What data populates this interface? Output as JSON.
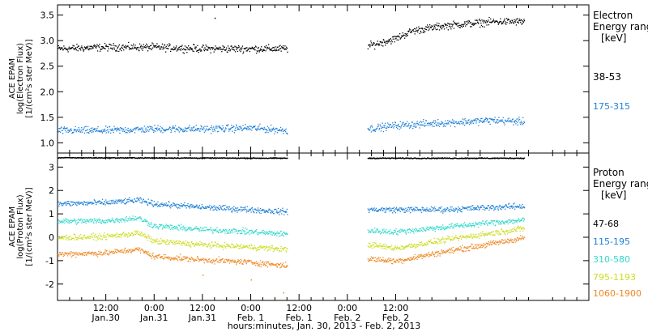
{
  "chart_data": [
    {
      "type": "scatter",
      "panel": "electron",
      "ylabel": [
        "ACE EPAM",
        "log(Electron Flux)",
        "[1/(cm²s ster MeV)]"
      ],
      "ylim": [
        0.8,
        3.7
      ],
      "yticks": [
        "1.0",
        "1.5",
        "2.0",
        "2.5",
        "3.0",
        "3.5"
      ],
      "legend_title": [
        "Electron",
        "Energy range",
        "[keV]"
      ],
      "series": [
        {
          "name": "38-53",
          "color": "#000000",
          "points": [
            [
              0,
              2.85
            ],
            [
              12,
              2.88
            ],
            [
              24,
              2.88
            ],
            [
              36,
              2.85
            ],
            [
              48,
              2.85
            ],
            [
              57,
              2.85
            ],
            [
              77,
              2.9
            ],
            [
              84,
              3.05
            ],
            [
              88,
              3.2
            ],
            [
              96,
              3.3
            ],
            [
              108,
              3.38
            ],
            [
              116,
              3.38
            ]
          ],
          "outliers": [
            [
              39,
              3.45
            ]
          ]
        },
        {
          "name": "175-315",
          "color": "#1e7fd6",
          "points": [
            [
              0,
              1.25
            ],
            [
              12,
              1.25
            ],
            [
              24,
              1.28
            ],
            [
              36,
              1.28
            ],
            [
              48,
              1.3
            ],
            [
              57,
              1.25
            ],
            [
              77,
              1.28
            ],
            [
              84,
              1.35
            ],
            [
              96,
              1.4
            ],
            [
              108,
              1.45
            ],
            [
              116,
              1.42
            ]
          ],
          "outliers": []
        }
      ]
    },
    {
      "type": "scatter",
      "panel": "proton",
      "ylabel": [
        "ACE EPAM",
        "log(Proton Flux)",
        "[1/(cm²s ster MeV)]"
      ],
      "ylim": [
        -2.7,
        3.6
      ],
      "yticks": [
        "-2",
        "-1",
        "0",
        "1",
        "2",
        "3"
      ],
      "legend_title": [
        "Proton",
        "Energy range",
        "[keV]"
      ],
      "series": [
        {
          "name": "47-68",
          "color": "#000000",
          "points": [
            [
              0,
              3.42
            ],
            [
              57,
              3.4
            ],
            [
              77,
              3.4
            ],
            [
              116,
              3.4
            ]
          ],
          "outliers": []
        },
        {
          "name": "115-195",
          "color": "#1e7fd6",
          "points": [
            [
              0,
              1.45
            ],
            [
              12,
              1.5
            ],
            [
              20,
              1.6
            ],
            [
              24,
              1.45
            ],
            [
              36,
              1.3
            ],
            [
              48,
              1.2
            ],
            [
              57,
              1.1
            ],
            [
              77,
              1.2
            ],
            [
              96,
              1.2
            ],
            [
              108,
              1.3
            ],
            [
              116,
              1.35
            ]
          ],
          "outliers": []
        },
        {
          "name": "310-580",
          "color": "#33d9cc",
          "points": [
            [
              0,
              0.7
            ],
            [
              12,
              0.72
            ],
            [
              20,
              0.85
            ],
            [
              24,
              0.5
            ],
            [
              36,
              0.35
            ],
            [
              48,
              0.25
            ],
            [
              57,
              0.15
            ],
            [
              77,
              0.3
            ],
            [
              84,
              0.25
            ],
            [
              96,
              0.45
            ],
            [
              108,
              0.65
            ],
            [
              116,
              0.75
            ]
          ],
          "outliers": []
        },
        {
          "name": "795-1193",
          "color": "#ccdd22",
          "points": [
            [
              0,
              0.0
            ],
            [
              12,
              0.05
            ],
            [
              20,
              0.2
            ],
            [
              24,
              -0.15
            ],
            [
              36,
              -0.3
            ],
            [
              48,
              -0.4
            ],
            [
              57,
              -0.5
            ],
            [
              77,
              -0.3
            ],
            [
              84,
              -0.45
            ],
            [
              96,
              -0.1
            ],
            [
              108,
              0.2
            ],
            [
              116,
              0.4
            ]
          ],
          "outliers": []
        },
        {
          "name": "1060-1900",
          "color": "#ee8822",
          "points": [
            [
              0,
              -0.7
            ],
            [
              12,
              -0.65
            ],
            [
              20,
              -0.5
            ],
            [
              24,
              -0.8
            ],
            [
              36,
              -0.95
            ],
            [
              48,
              -1.05
            ],
            [
              57,
              -1.2
            ],
            [
              77,
              -0.9
            ],
            [
              84,
              -1.0
            ],
            [
              96,
              -0.6
            ],
            [
              108,
              -0.25
            ],
            [
              116,
              0.0
            ]
          ],
          "outliers": [
            [
              36,
              -1.6
            ],
            [
              48,
              -1.8
            ],
            [
              56,
              -2.35
            ]
          ]
        }
      ]
    }
  ],
  "x_axis": {
    "range_hours": [
      0,
      132
    ],
    "ticks": [
      {
        "h": 6,
        "time": "12:00",
        "date": "Jan.30"
      },
      {
        "h": 18,
        "time": "0:00",
        "date": "Jan.31"
      },
      {
        "h": 30,
        "time": "12:00",
        "date": "Jan.31"
      },
      {
        "h": 42,
        "time": "0:00",
        "date": "Feb. 1"
      },
      {
        "h": 54,
        "time": "12:00",
        "date": "Feb. 1"
      },
      {
        "h": 66,
        "time": "0:00",
        "date": "Feb. 2"
      },
      {
        "h": 78,
        "time": "12:00",
        "date": "Feb. 2"
      }
    ],
    "xlabel": "hours:minutes, Jan. 30, 2013 - Feb.  2, 2013"
  }
}
